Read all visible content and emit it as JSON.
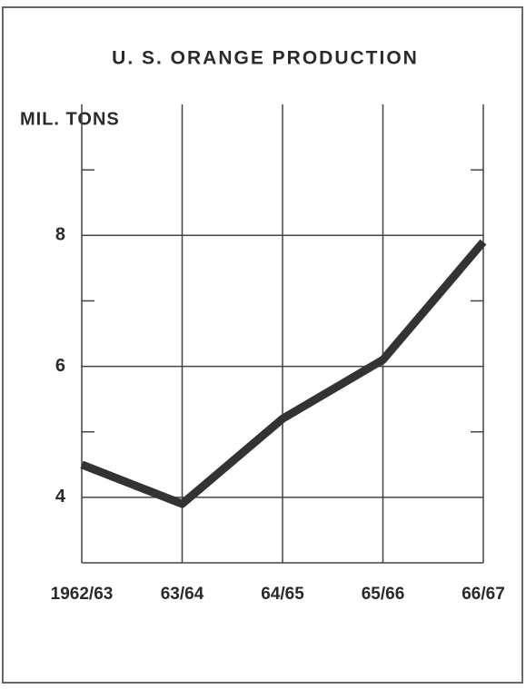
{
  "chart_data": {
    "type": "line",
    "title": "U. S. ORANGE PRODUCTION",
    "y_label": "MIL. TONS",
    "categories": [
      "1962/63",
      "63/64",
      "64/65",
      "65/66",
      "66/67"
    ],
    "values": [
      4.5,
      3.9,
      5.2,
      6.1,
      7.9
    ],
    "color": "#333333",
    "ylim": [
      3,
      10
    ],
    "yticks": [
      4,
      6,
      8
    ],
    "minor_yticks": [
      5,
      7,
      9
    ],
    "grid": true
  }
}
